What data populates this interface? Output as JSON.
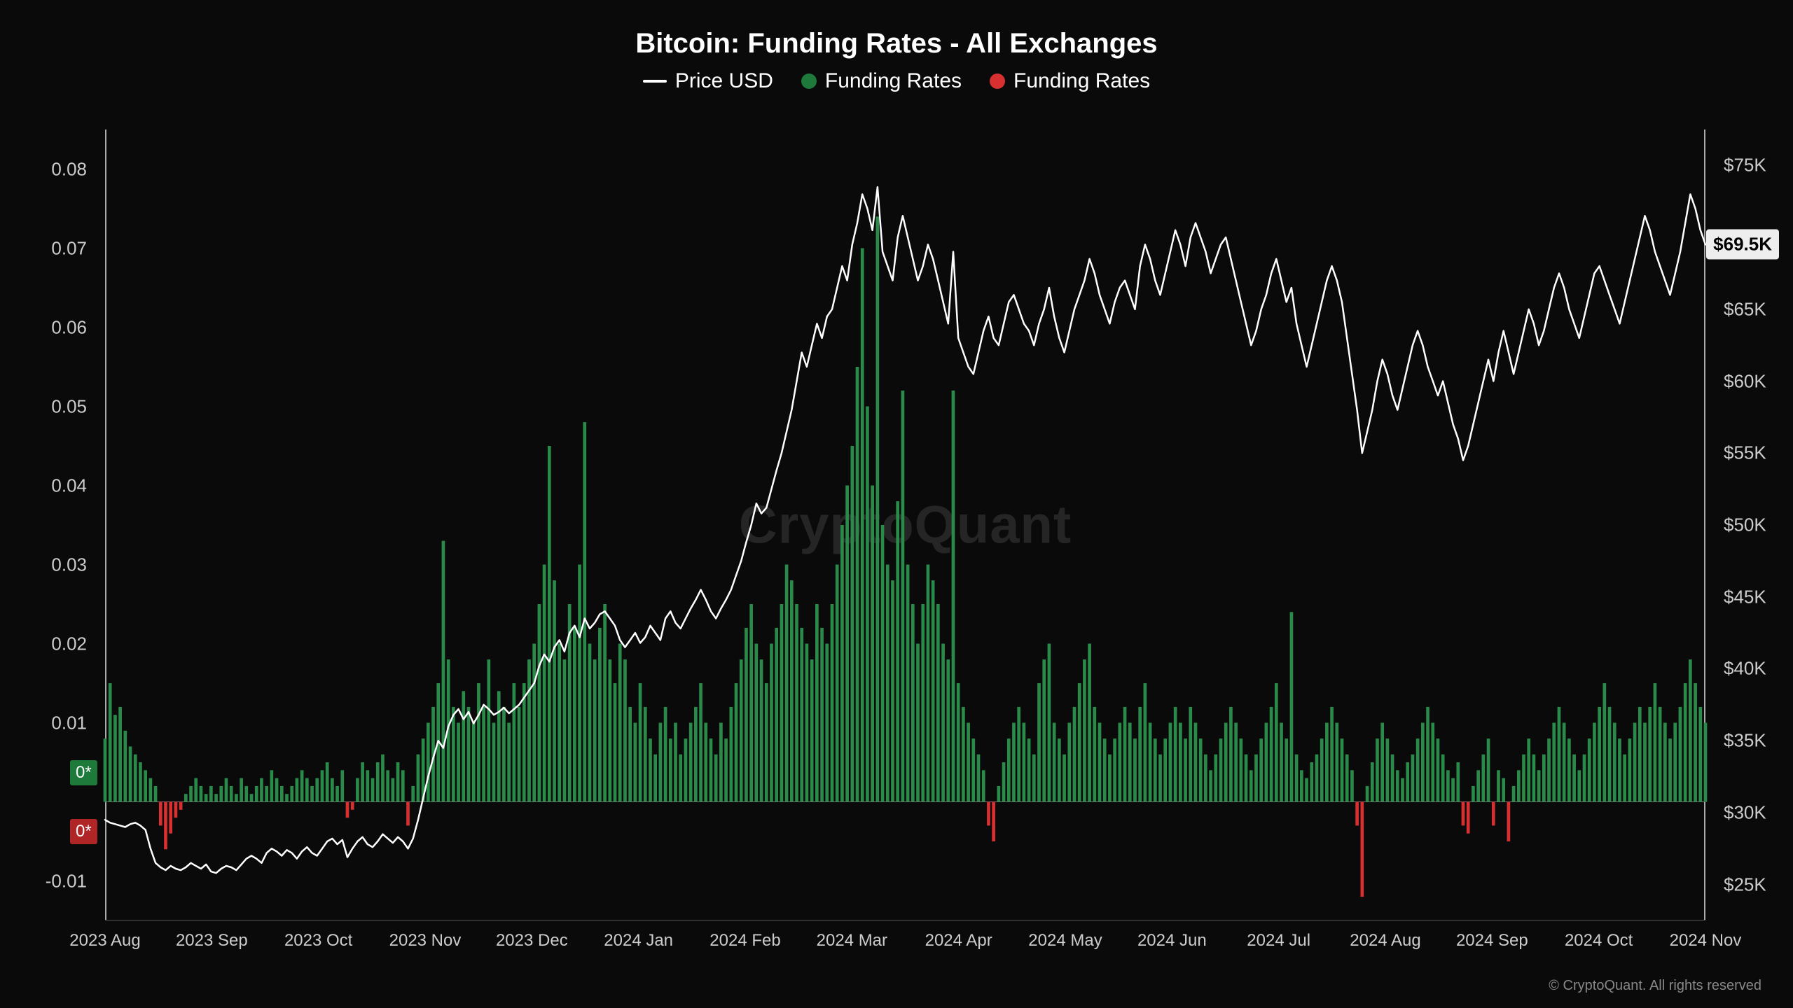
{
  "title": "Bitcoin: Funding Rates - All Exchanges",
  "legend": [
    {
      "kind": "line",
      "label": "Price USD",
      "color": "#ffffff"
    },
    {
      "kind": "dot",
      "label": "Funding Rates",
      "color": "#1d7a3a"
    },
    {
      "kind": "dot",
      "label": "Funding Rates",
      "color": "#d83030"
    }
  ],
  "watermark": "CryptoQuant",
  "copyright": "© CryptoQuant. All rights reserved",
  "badge_green": "0*",
  "badge_red": "0*",
  "price_badge": "$69.5K",
  "colors": {
    "bg": "#0a0a0a",
    "text": "#ffffff",
    "axis_text": "#cccccc",
    "axis_line": "#aaaaaa",
    "bar_pos": "#2a8a4a",
    "bar_neg": "#d83030",
    "price_line": "#ffffff",
    "zero_line": "#777777"
  },
  "left_axis": {
    "min": -0.015,
    "max": 0.085,
    "ticks": [
      -0.01,
      0,
      0.01,
      0.02,
      0.03,
      0.04,
      0.05,
      0.06,
      0.07,
      0.08
    ],
    "tick_labels": [
      "-0.01",
      "",
      "0.01",
      "0.02",
      "0.03",
      "0.04",
      "0.05",
      "0.06",
      "0.07",
      "0.08"
    ]
  },
  "right_axis": {
    "min": 22.5,
    "max": 77.5,
    "ticks": [
      25,
      30,
      35,
      40,
      45,
      50,
      55,
      60,
      65,
      75
    ],
    "tick_labels": [
      "$25K",
      "$30K",
      "$35K",
      "$40K",
      "$45K",
      "$50K",
      "$55K",
      "$60K",
      "$65K",
      "$75K"
    ],
    "current": 69.5
  },
  "x_axis": {
    "labels": [
      "2023 Aug",
      "2023 Sep",
      "2023 Oct",
      "2023 Nov",
      "2023 Dec",
      "2024 Jan",
      "2024 Feb",
      "2024 Mar",
      "2024 Apr",
      "2024 May",
      "2024 Jun",
      "2024 Jul",
      "2024 Aug",
      "2024 Sep",
      "2024 Oct",
      "2024 Nov"
    ]
  },
  "funding_rates": [
    0.008,
    0.015,
    0.011,
    0.012,
    0.009,
    0.007,
    0.006,
    0.005,
    0.004,
    0.003,
    0.002,
    -0.003,
    -0.006,
    -0.004,
    -0.002,
    -0.001,
    0.001,
    0.002,
    0.003,
    0.002,
    0.001,
    0.002,
    0.001,
    0.002,
    0.003,
    0.002,
    0.001,
    0.003,
    0.002,
    0.001,
    0.002,
    0.003,
    0.002,
    0.004,
    0.003,
    0.002,
    0.001,
    0.002,
    0.003,
    0.004,
    0.003,
    0.002,
    0.003,
    0.004,
    0.005,
    0.003,
    0.002,
    0.004,
    -0.002,
    -0.001,
    0.003,
    0.005,
    0.004,
    0.003,
    0.005,
    0.006,
    0.004,
    0.003,
    0.005,
    0.004,
    -0.003,
    0.002,
    0.006,
    0.008,
    0.01,
    0.012,
    0.015,
    0.033,
    0.018,
    0.012,
    0.01,
    0.014,
    0.012,
    0.01,
    0.015,
    0.012,
    0.018,
    0.01,
    0.014,
    0.012,
    0.01,
    0.015,
    0.012,
    0.015,
    0.018,
    0.02,
    0.025,
    0.03,
    0.045,
    0.028,
    0.02,
    0.018,
    0.025,
    0.022,
    0.03,
    0.048,
    0.02,
    0.018,
    0.022,
    0.025,
    0.018,
    0.015,
    0.02,
    0.018,
    0.012,
    0.01,
    0.015,
    0.012,
    0.008,
    0.006,
    0.01,
    0.012,
    0.008,
    0.01,
    0.006,
    0.008,
    0.01,
    0.012,
    0.015,
    0.01,
    0.008,
    0.006,
    0.01,
    0.008,
    0.012,
    0.015,
    0.018,
    0.022,
    0.025,
    0.02,
    0.018,
    0.015,
    0.02,
    0.022,
    0.025,
    0.03,
    0.028,
    0.025,
    0.022,
    0.02,
    0.018,
    0.025,
    0.022,
    0.02,
    0.025,
    0.03,
    0.035,
    0.04,
    0.045,
    0.055,
    0.07,
    0.05,
    0.04,
    0.074,
    0.035,
    0.03,
    0.028,
    0.038,
    0.052,
    0.03,
    0.025,
    0.02,
    0.025,
    0.03,
    0.028,
    0.025,
    0.02,
    0.018,
    0.052,
    0.015,
    0.012,
    0.01,
    0.008,
    0.006,
    0.004,
    -0.003,
    -0.005,
    0.002,
    0.005,
    0.008,
    0.01,
    0.012,
    0.01,
    0.008,
    0.006,
    0.015,
    0.018,
    0.02,
    0.01,
    0.008,
    0.006,
    0.01,
    0.012,
    0.015,
    0.018,
    0.02,
    0.012,
    0.01,
    0.008,
    0.006,
    0.008,
    0.01,
    0.012,
    0.01,
    0.008,
    0.012,
    0.015,
    0.01,
    0.008,
    0.006,
    0.008,
    0.01,
    0.012,
    0.01,
    0.008,
    0.012,
    0.01,
    0.008,
    0.006,
    0.004,
    0.006,
    0.008,
    0.01,
    0.012,
    0.01,
    0.008,
    0.006,
    0.004,
    0.006,
    0.008,
    0.01,
    0.012,
    0.015,
    0.01,
    0.008,
    0.024,
    0.006,
    0.004,
    0.003,
    0.005,
    0.006,
    0.008,
    0.01,
    0.012,
    0.01,
    0.008,
    0.006,
    0.004,
    -0.003,
    -0.012,
    0.002,
    0.005,
    0.008,
    0.01,
    0.008,
    0.006,
    0.004,
    0.003,
    0.005,
    0.006,
    0.008,
    0.01,
    0.012,
    0.01,
    0.008,
    0.006,
    0.004,
    0.003,
    0.005,
    -0.003,
    -0.004,
    0.002,
    0.004,
    0.006,
    0.008,
    -0.003,
    0.004,
    0.003,
    -0.005,
    0.002,
    0.004,
    0.006,
    0.008,
    0.006,
    0.004,
    0.006,
    0.008,
    0.01,
    0.012,
    0.01,
    0.008,
    0.006,
    0.004,
    0.006,
    0.008,
    0.01,
    0.012,
    0.015,
    0.012,
    0.01,
    0.008,
    0.006,
    0.008,
    0.01,
    0.012,
    0.01,
    0.012,
    0.015,
    0.012,
    0.01,
    0.008,
    0.01,
    0.012,
    0.015,
    0.018,
    0.015,
    0.012,
    0.01
  ],
  "price_series": [
    29.5,
    29.3,
    29.2,
    29.1,
    29.0,
    29.2,
    29.3,
    29.1,
    28.8,
    27.5,
    26.5,
    26.2,
    26.0,
    26.3,
    26.1,
    26.0,
    26.2,
    26.5,
    26.3,
    26.1,
    26.4,
    25.9,
    25.8,
    26.1,
    26.3,
    26.2,
    26.0,
    26.4,
    26.8,
    27.0,
    26.8,
    26.5,
    27.2,
    27.5,
    27.3,
    27.0,
    27.4,
    27.2,
    26.8,
    27.3,
    27.6,
    27.2,
    27.0,
    27.5,
    28.0,
    28.2,
    27.8,
    28.1,
    26.9,
    27.5,
    28.0,
    28.3,
    27.8,
    27.6,
    28.0,
    28.5,
    28.2,
    27.9,
    28.3,
    28.0,
    27.5,
    28.2,
    29.5,
    31.0,
    32.5,
    33.8,
    35.0,
    34.5,
    36.0,
    36.8,
    37.2,
    36.5,
    37.0,
    36.2,
    36.8,
    37.5,
    37.2,
    36.8,
    37.0,
    37.3,
    36.9,
    37.2,
    37.5,
    38.0,
    38.5,
    39.0,
    40.2,
    41.0,
    40.5,
    41.5,
    42.0,
    41.2,
    42.5,
    43.0,
    42.2,
    43.5,
    42.8,
    43.2,
    43.8,
    44.0,
    43.5,
    43.0,
    42.0,
    41.5,
    42.0,
    42.5,
    41.8,
    42.2,
    43.0,
    42.5,
    42.0,
    43.5,
    44.0,
    43.2,
    42.8,
    43.5,
    44.2,
    44.8,
    45.5,
    44.8,
    44.0,
    43.5,
    44.2,
    44.8,
    45.5,
    46.5,
    47.5,
    48.8,
    50.0,
    51.5,
    50.8,
    51.2,
    52.5,
    53.8,
    55.0,
    56.5,
    58.0,
    60.0,
    62.0,
    61.0,
    62.5,
    64.0,
    63.0,
    64.5,
    65.0,
    66.5,
    68.0,
    67.0,
    69.5,
    71.0,
    73.0,
    72.0,
    70.5,
    73.5,
    69.0,
    68.0,
    67.0,
    70.0,
    71.5,
    70.0,
    68.5,
    67.0,
    68.0,
    69.5,
    68.5,
    67.0,
    65.5,
    64.0,
    69.0,
    63.0,
    62.0,
    61.0,
    60.5,
    62.0,
    63.5,
    64.5,
    63.0,
    62.5,
    64.0,
    65.5,
    66.0,
    65.0,
    64.0,
    63.5,
    62.5,
    64.0,
    65.0,
    66.5,
    64.5,
    63.0,
    62.0,
    63.5,
    65.0,
    66.0,
    67.0,
    68.5,
    67.5,
    66.0,
    65.0,
    64.0,
    65.5,
    66.5,
    67.0,
    66.0,
    65.0,
    68.0,
    69.5,
    68.5,
    67.0,
    66.0,
    67.5,
    69.0,
    70.5,
    69.5,
    68.0,
    70.0,
    71.0,
    70.0,
    69.0,
    67.5,
    68.5,
    69.5,
    70.0,
    68.5,
    67.0,
    65.5,
    64.0,
    62.5,
    63.5,
    65.0,
    66.0,
    67.5,
    68.5,
    67.0,
    65.5,
    66.5,
    64.0,
    62.5,
    61.0,
    62.5,
    64.0,
    65.5,
    67.0,
    68.0,
    67.0,
    65.5,
    63.0,
    60.5,
    58.0,
    55.0,
    56.5,
    58.0,
    60.0,
    61.5,
    60.5,
    59.0,
    58.0,
    59.5,
    61.0,
    62.5,
    63.5,
    62.5,
    61.0,
    60.0,
    59.0,
    60.0,
    58.5,
    57.0,
    56.0,
    54.5,
    55.5,
    57.0,
    58.5,
    60.0,
    61.5,
    60.0,
    62.0,
    63.5,
    62.0,
    60.5,
    62.0,
    63.5,
    65.0,
    64.0,
    62.5,
    63.5,
    65.0,
    66.5,
    67.5,
    66.5,
    65.0,
    64.0,
    63.0,
    64.5,
    66.0,
    67.5,
    68.0,
    67.0,
    66.0,
    65.0,
    64.0,
    65.5,
    67.0,
    68.5,
    70.0,
    71.5,
    70.5,
    69.0,
    68.0,
    67.0,
    66.0,
    67.5,
    69.0,
    71.0,
    73.0,
    72.0,
    70.5,
    69.5
  ]
}
